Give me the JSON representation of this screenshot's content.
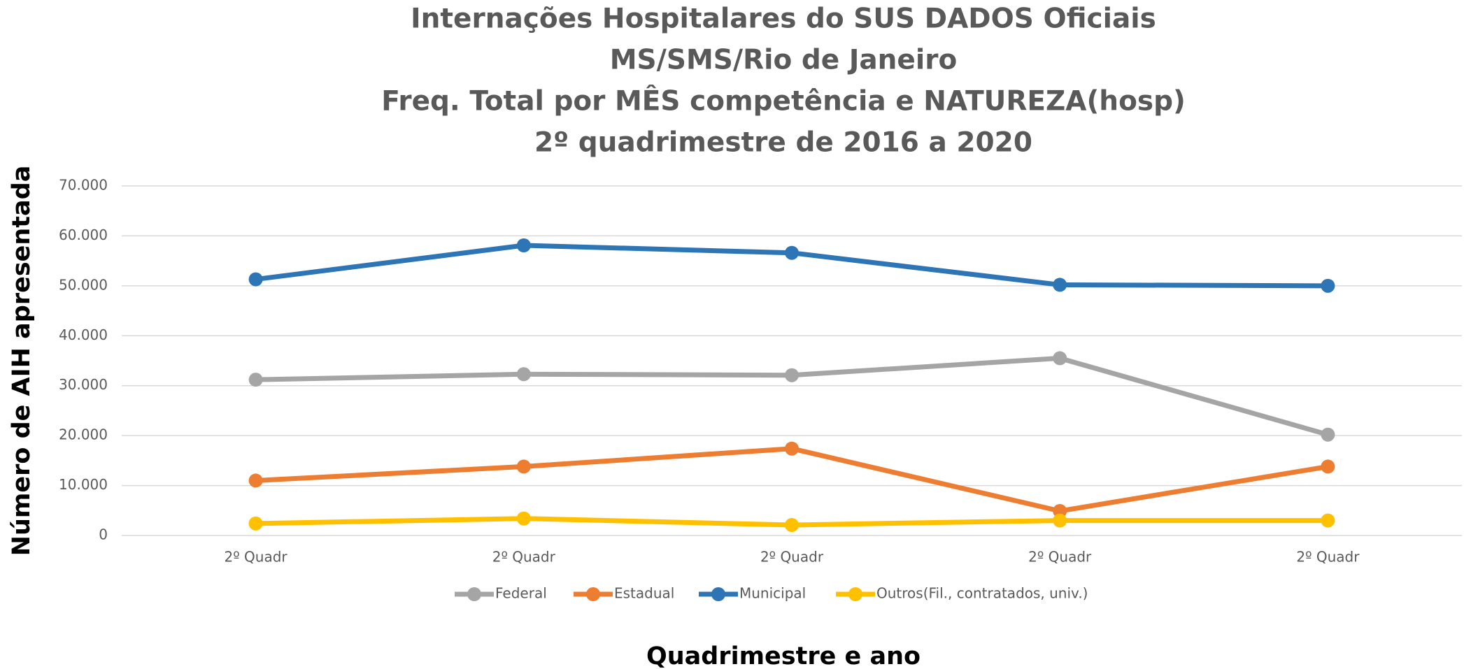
{
  "chart_data": {
    "type": "line",
    "title": [
      "Internações Hospitalares do SUS DADOS Oficiais",
      "MS/SMS/Rio de Janeiro",
      "Freq. Total por MÊS competência e NATUREZA(hosp)",
      "2º quadrimestre de 2016 a 2020"
    ],
    "x_label": "Quadrimestre e ano",
    "y_label": "Número de AIH apresentada",
    "categories": [
      "2º Quadr",
      "2º Quadr",
      "2º Quadr",
      "2º Quadr",
      "2º Quadr"
    ],
    "series": [
      {
        "name": "Federal",
        "color": "#a5a5a5",
        "values": [
          31200,
          32300,
          32100,
          35500,
          20200
        ]
      },
      {
        "name": "Estadual",
        "color": "#ed7d31",
        "values": [
          11000,
          13800,
          17400,
          4900,
          13800
        ]
      },
      {
        "name": "Municipal",
        "color": "#2e75b6",
        "values": [
          51300,
          58100,
          56600,
          50200,
          50000
        ]
      },
      {
        "name": "Outros(Fil., contratados, univ.)",
        "color": "#ffc000",
        "values": [
          2400,
          3400,
          2100,
          3000,
          3000
        ]
      }
    ],
    "ylim": [
      0,
      70000
    ],
    "yticks": [
      0,
      {
        "value": 10000,
        "label": "10.000"
      },
      {
        "value": 20000,
        "label": "20.000"
      },
      {
        "value": 30000,
        "label": "30.000"
      },
      {
        "value": 40000,
        "label": "40.000"
      },
      {
        "value": 50000,
        "label": "50.000"
      },
      {
        "value": 60000,
        "label": "60.000"
      },
      {
        "value": 70000,
        "label": "70.000"
      }
    ],
    "grid": true,
    "legend": "bottom"
  }
}
